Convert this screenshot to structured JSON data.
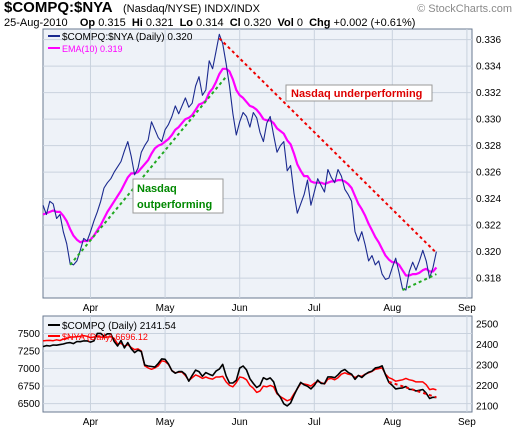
{
  "header": {
    "ticker": "$COMPQ:$NYA",
    "subtitle": "(Nasdaq/NYSE)  INDX/INDX",
    "watermark": "© StockCharts.com",
    "quote": {
      "date": "25-Aug-2010",
      "open_label": "Op",
      "open": "0.315",
      "high_label": "Hi",
      "high": "0.321",
      "low_label": "Lo",
      "low": "0.314",
      "close_label": "Cl",
      "close": "0.320",
      "vol_label": "Vol",
      "vol": "0",
      "chg_label": "Chg",
      "chg": "+0.002 (+0.61%)"
    }
  },
  "colors": {
    "bg": "#ffffff",
    "plot_bg": "#eef2f8",
    "grid": "#c9d2de",
    "ratio": "#1b2a8f",
    "ema": "#ff00ff",
    "compq": "#000000",
    "nya": "#ff0000",
    "up_trend": "#22aa22",
    "down_trend": "#ee0000",
    "annot_up": "#008800",
    "annot_down": "#dd0000"
  },
  "chart_data": [
    {
      "type": "line",
      "legend": [
        "$COMPQ:$NYA (Daily) 0.320",
        "EMA(10) 0.319"
      ],
      "legend_position": "top-left",
      "grid": true,
      "xticks": [
        "Apr",
        "May",
        "Jun",
        "Jul",
        "Aug",
        "Sep"
      ],
      "yticks": [
        "0.318",
        "0.320",
        "0.322",
        "0.324",
        "0.326",
        "0.328",
        "0.330",
        "0.332",
        "0.334",
        "0.336"
      ],
      "ylim": [
        0.3165,
        0.3368
      ],
      "axis_side": "right",
      "series": [
        {
          "name": "$COMPQ:$NYA (Daily)",
          "values": [
            0.3235,
            0.3228,
            0.3238,
            0.3236,
            0.3225,
            0.3228,
            0.3215,
            0.3206,
            0.3191,
            0.319,
            0.3193,
            0.3201,
            0.321,
            0.3208,
            0.3215,
            0.3223,
            0.323,
            0.3238,
            0.3248,
            0.3252,
            0.3255,
            0.326,
            0.3264,
            0.3268,
            0.3276,
            0.3283,
            0.3272,
            0.3258,
            0.3263,
            0.3275,
            0.328,
            0.3284,
            0.3298,
            0.3292,
            0.3286,
            0.3283,
            0.3292,
            0.3296,
            0.3302,
            0.331,
            0.3304,
            0.331,
            0.3316,
            0.3309,
            0.3312,
            0.3325,
            0.3332,
            0.3318,
            0.3322,
            0.3344,
            0.3338,
            0.3351,
            0.3364,
            0.3357,
            0.3342,
            0.3325,
            0.3304,
            0.3288,
            0.3298,
            0.3305,
            0.3302,
            0.3294,
            0.3305,
            0.3301,
            0.329,
            0.3283,
            0.3297,
            0.3302,
            0.3288,
            0.3275,
            0.328,
            0.3283,
            0.3261,
            0.3265,
            0.3244,
            0.3229,
            0.3236,
            0.3243,
            0.3254,
            0.3235,
            0.3245,
            0.3255,
            0.325,
            0.3245,
            0.3262,
            0.3256,
            0.3252,
            0.3262,
            0.3257,
            0.3247,
            0.3243,
            0.3238,
            0.3215,
            0.3208,
            0.3215,
            0.3205,
            0.3193,
            0.3197,
            0.319,
            0.3193,
            0.3183,
            0.3179,
            0.318,
            0.3188,
            0.3195,
            0.3184,
            0.3172,
            0.3171,
            0.3185,
            0.3192,
            0.3186,
            0.3193,
            0.3201,
            0.3193,
            0.318,
            0.3188,
            0.32
          ]
        },
        {
          "name": "EMA(10)",
          "values": [
            0.3228,
            0.3229,
            0.323,
            0.3231,
            0.323,
            0.323,
            0.3227,
            0.3223,
            0.3217,
            0.3212,
            0.3209,
            0.3207,
            0.3208,
            0.3208,
            0.3209,
            0.3212,
            0.3216,
            0.322,
            0.3225,
            0.323,
            0.3234,
            0.3238,
            0.3242,
            0.3246,
            0.3251,
            0.3256,
            0.3259,
            0.3259,
            0.326,
            0.3263,
            0.3266,
            0.3269,
            0.3274,
            0.3278,
            0.328,
            0.3281,
            0.3283,
            0.3285,
            0.3288,
            0.3292,
            0.3294,
            0.3297,
            0.33,
            0.3301,
            0.3303,
            0.3307,
            0.3311,
            0.3312,
            0.3314,
            0.332,
            0.3323,
            0.3328,
            0.3334,
            0.3338,
            0.3338,
            0.3336,
            0.333,
            0.3322,
            0.3318,
            0.3316,
            0.3313,
            0.331,
            0.3309,
            0.3307,
            0.3304,
            0.33,
            0.3299,
            0.3299,
            0.3297,
            0.3293,
            0.3291,
            0.3289,
            0.3284,
            0.3281,
            0.3274,
            0.3266,
            0.3261,
            0.3257,
            0.3257,
            0.3253,
            0.3252,
            0.3252,
            0.3252,
            0.3251,
            0.3252,
            0.3253,
            0.3253,
            0.3254,
            0.3254,
            0.3253,
            0.3251,
            0.3248,
            0.3242,
            0.3236,
            0.3232,
            0.3227,
            0.3221,
            0.3216,
            0.3211,
            0.3207,
            0.3202,
            0.3197,
            0.3194,
            0.3192,
            0.3192,
            0.319,
            0.3186,
            0.3182,
            0.3182,
            0.3183,
            0.3183,
            0.3184,
            0.3186,
            0.3187,
            0.3185,
            0.3185,
            0.3188
          ]
        }
      ],
      "trendlines": [
        {
          "name": "uptrend-apr-jun",
          "color": "up",
          "from": [
            8,
            0.319
          ],
          "to": [
            54,
            0.3332
          ]
        },
        {
          "name": "downtrend-jun-aug",
          "color": "down",
          "from": [
            52,
            0.3361
          ],
          "to": [
            116,
            0.3199
          ]
        },
        {
          "name": "uptrend-aug",
          "color": "up",
          "from": [
            106,
            0.3171
          ],
          "to": [
            116,
            0.3183
          ]
        }
      ],
      "annotations": [
        {
          "text": "Nasdaq underperforming",
          "color": "down"
        },
        {
          "text": "Nasdaq\noutperforming",
          "color": "up"
        }
      ]
    },
    {
      "type": "line",
      "legend": [
        "$COMPQ (Daily) 2141.54",
        "$NYA (Daily) 6696.12"
      ],
      "legend_position": "top-left",
      "grid": true,
      "xticks": [
        "Apr",
        "May",
        "Jun",
        "Jul",
        "Aug",
        "Sep"
      ],
      "yticks_left": [
        "6500",
        "6750",
        "7000",
        "7250",
        "7500"
      ],
      "yticks_right": [
        "2100",
        "2200",
        "2300",
        "2400",
        "2500"
      ],
      "ylim_left": [
        6380,
        7750
      ],
      "ylim_right": [
        2070,
        2540
      ],
      "series": [
        {
          "name": "$COMPQ (Daily)",
          "axis": "right",
          "values": [
            2390,
            2395,
            2393,
            2398,
            2397,
            2400,
            2403,
            2408,
            2410,
            2405,
            2415,
            2414,
            2418,
            2418,
            2412,
            2418,
            2455,
            2455,
            2440,
            2453,
            2453,
            2415,
            2393,
            2420,
            2384,
            2410,
            2380,
            2361,
            2373,
            2366,
            2300,
            2295,
            2293,
            2290,
            2308,
            2330,
            2328,
            2305,
            2272,
            2260,
            2268,
            2268,
            2254,
            2221,
            2249,
            2275,
            2268,
            2245,
            2263,
            2255,
            2248,
            2270,
            2280,
            2303,
            2247,
            2212,
            2212,
            2225,
            2285,
            2295,
            2276,
            2233,
            2210,
            2190,
            2200,
            2238,
            2229,
            2237,
            2218,
            2165,
            2142,
            2110,
            2100,
            2114,
            2152,
            2185,
            2215,
            2203,
            2196,
            2183,
            2200,
            2226,
            2210,
            2209,
            2242,
            2242,
            2238,
            2252,
            2270,
            2278,
            2264,
            2255,
            2230,
            2249,
            2239,
            2254,
            2265,
            2270,
            2286,
            2289,
            2296,
            2252,
            2215,
            2200,
            2183,
            2186,
            2188,
            2195,
            2181,
            2180,
            2173,
            2176,
            2180,
            2162,
            2136,
            2142,
            2141
          ]
        },
        {
          "name": "$NYA (Daily)",
          "axis": "left",
          "values": [
            7395,
            7400,
            7402,
            7398,
            7410,
            7400,
            7420,
            7430,
            7450,
            7450,
            7455,
            7460,
            7470,
            7460,
            7440,
            7450,
            7460,
            7450,
            7440,
            7450,
            7455,
            7430,
            7350,
            7360,
            7320,
            7340,
            7300,
            7270,
            7280,
            7250,
            7040,
            7010,
            6990,
            7010,
            7040,
            7110,
            7100,
            7060,
            6970,
            6940,
            6950,
            6950,
            6900,
            6830,
            6870,
            6910,
            6890,
            6860,
            6880,
            6860,
            6850,
            6880,
            6880,
            6890,
            6810,
            6760,
            6740,
            6800,
            6880,
            6870,
            6840,
            6760,
            6720,
            6660,
            6680,
            6750,
            6740,
            6760,
            6740,
            6640,
            6600,
            6570,
            6540,
            6560,
            6640,
            6710,
            6790,
            6780,
            6770,
            6750,
            6790,
            6820,
            6800,
            6780,
            6850,
            6860,
            6840,
            6870,
            6920,
            6940,
            6920,
            6910,
            6870,
            6900,
            6890,
            6920,
            6940,
            6960,
            6990,
            7000,
            7010,
            6920,
            6870,
            6850,
            6820,
            6830,
            6840,
            6860,
            6840,
            6830,
            6810,
            6810,
            6810,
            6770,
            6700,
            6710,
            6696
          ]
        }
      ],
      "trendlines": [
        {
          "name": "nya-divergence",
          "color": "down",
          "from": [
            102,
            6810
          ],
          "to": [
            116,
            6590
          ]
        }
      ]
    }
  ]
}
